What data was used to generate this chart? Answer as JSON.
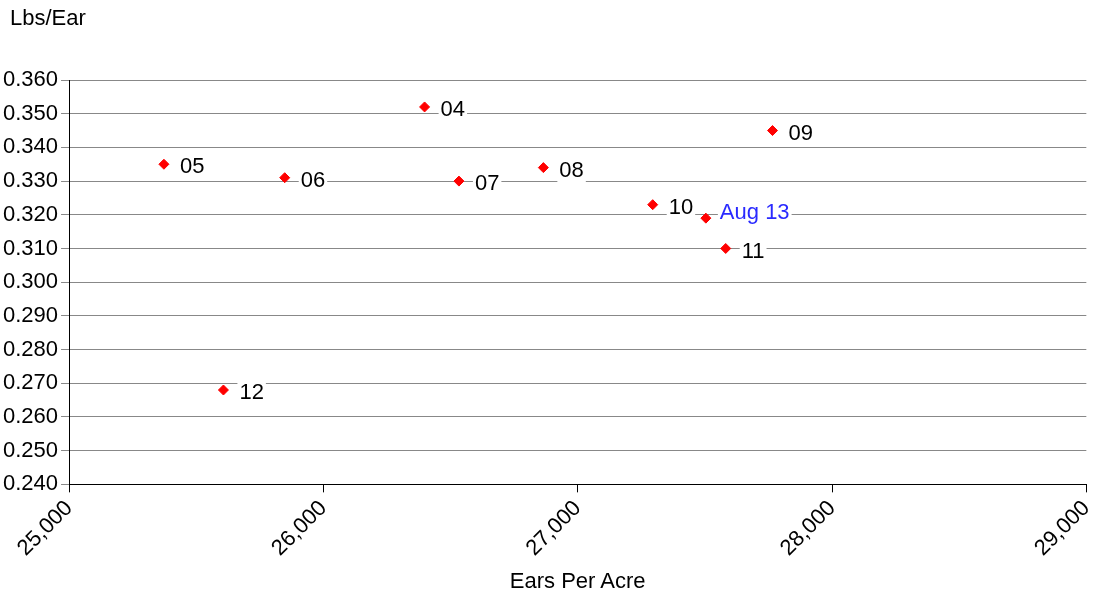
{
  "chart_data": {
    "type": "scatter",
    "xlabel": "Ears Per Acre",
    "ylabel": "Lbs/Ear",
    "series": [
      {
        "color": "#ff0000",
        "x": [
          26398,
          25373,
          25848,
          26533,
          26865,
          27766,
          27295,
          27582,
          25607
        ],
        "values": [
          0.352,
          0.335,
          0.331,
          0.33,
          0.334,
          0.345,
          0.323,
          0.31,
          0.268
        ]
      },
      {
        "name": "Aug 13",
        "color": "#ff0000",
        "x": [
          27504
        ],
        "values": [
          0.319
        ]
      }
    ],
    "annotations": [
      {
        "text": "04",
        "x": 26398,
        "y": 0.352
      },
      {
        "text": "05",
        "x": 25373,
        "y": 0.335
      },
      {
        "text": "06",
        "x": 25848,
        "y": 0.331
      },
      {
        "text": "07",
        "x": 26533,
        "y": 0.33
      },
      {
        "text": "08",
        "x": 26865,
        "y": 0.334
      },
      {
        "text": "09",
        "x": 27766,
        "y": 0.345
      },
      {
        "text": "10",
        "x": 27295,
        "y": 0.323
      },
      {
        "text": "11",
        "x": 27582,
        "y": 0.31
      },
      {
        "text": "12",
        "x": 25607,
        "y": 0.268
      }
    ],
    "xlim": [
      25000,
      29000
    ],
    "xticks": [
      {
        "value": 25000,
        "label": "25,000"
      },
      {
        "value": 26000,
        "label": "26,000"
      },
      {
        "value": 27000,
        "label": "27,000"
      },
      {
        "value": 28000,
        "label": "28,000"
      },
      {
        "value": 29000,
        "label": "29,000"
      }
    ],
    "ylim": [
      0.24,
      0.36
    ],
    "yticks": [
      {
        "value": 0.24,
        "label": "0.240"
      },
      {
        "value": 0.25,
        "label": "0.250"
      },
      {
        "value": 0.26,
        "label": "0.260"
      },
      {
        "value": 0.27,
        "label": "0.270"
      },
      {
        "value": 0.28,
        "label": "0.280"
      },
      {
        "value": 0.29,
        "label": "0.290"
      },
      {
        "value": 0.3,
        "label": "0.300"
      },
      {
        "value": 0.31,
        "label": "0.310"
      },
      {
        "value": 0.32,
        "label": "0.320"
      },
      {
        "value": 0.33,
        "label": "0.330"
      },
      {
        "value": 0.34,
        "label": "0.340"
      },
      {
        "value": 0.35,
        "label": "0.350"
      },
      {
        "value": 0.36,
        "label": "0.360"
      }
    ],
    "grid": "y",
    "marker": "diamond",
    "legend": false
  }
}
